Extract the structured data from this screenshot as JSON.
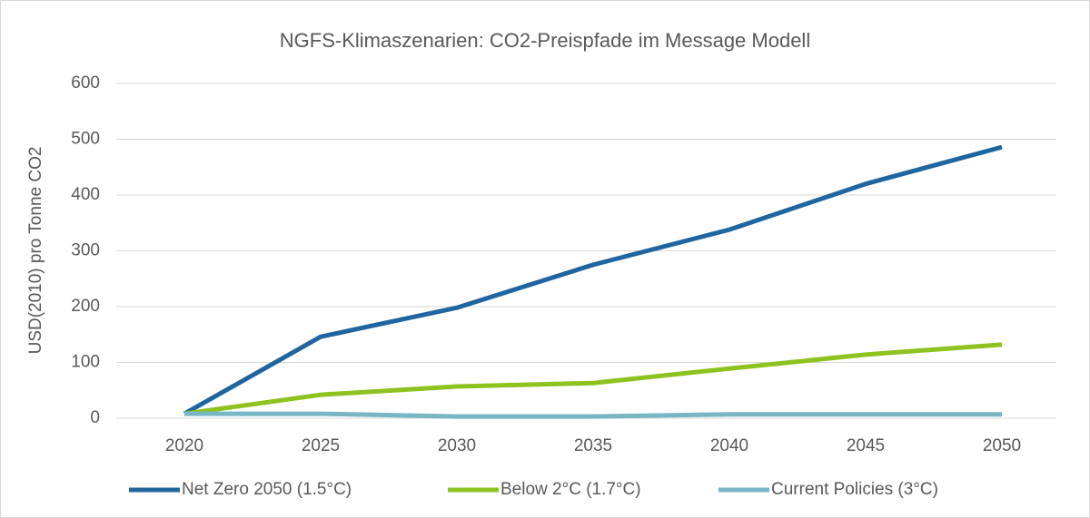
{
  "chart_data": {
    "type": "line",
    "title": "NGFS-Klimaszenarien: CO2-Preispfade im Message Modell",
    "y_label": "USD(2010) pro Tonne CO2",
    "categories": [
      "2020",
      "2025",
      "2030",
      "2035",
      "2040",
      "2045",
      "2050"
    ],
    "series": [
      {
        "name": "Net Zero 2050 (1.5°C)",
        "color": "#1f65a0",
        "values": [
          8,
          146,
          198,
          275,
          338,
          420,
          486
        ]
      },
      {
        "name": "Below 2°C (1.7°C)",
        "color": "#8dc21f",
        "values": [
          8,
          42,
          57,
          63,
          89,
          114,
          132
        ]
      },
      {
        "name": "Current Policies (3°C)",
        "color": "#78b6c6",
        "values": [
          8,
          8,
          3,
          3,
          7,
          7,
          7
        ]
      }
    ],
    "ylim": [
      0,
      600
    ],
    "yticks": [
      0,
      100,
      200,
      300,
      400,
      500,
      600
    ],
    "grid": true,
    "legend": "bottom"
  }
}
